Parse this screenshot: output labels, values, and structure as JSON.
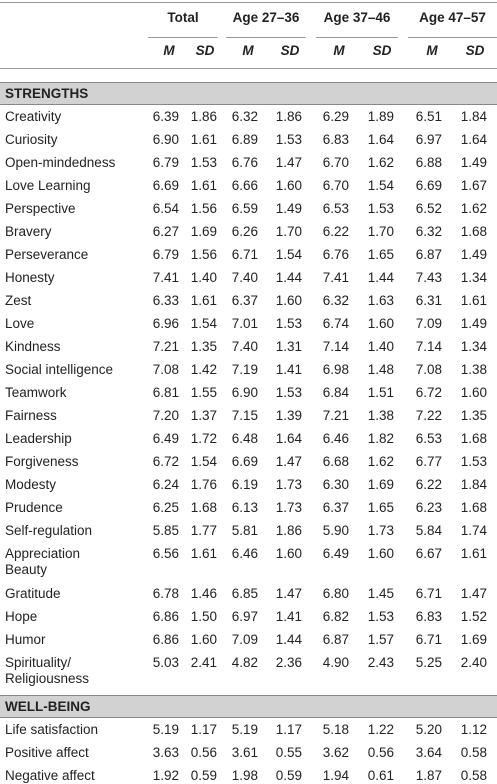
{
  "table": {
    "groups": [
      "Total",
      "Age 27–36",
      "Age 37–46",
      "Age 47–57"
    ],
    "subheaders": [
      "M",
      "SD"
    ],
    "sections": [
      {
        "title": "STRENGTHS",
        "rows": [
          [
            "Creativity",
            "6.39",
            "1.86",
            "6.32",
            "1.86",
            "6.29",
            "1.89",
            "6.51",
            "1.84"
          ],
          [
            "Curiosity",
            "6.90",
            "1.61",
            "6.89",
            "1.53",
            "6.83",
            "1.64",
            "6.97",
            "1.64"
          ],
          [
            "Open-mindedness",
            "6.79",
            "1.53",
            "6.76",
            "1.47",
            "6.70",
            "1.62",
            "6.88",
            "1.49"
          ],
          [
            "Love Learning",
            "6.69",
            "1.61",
            "6.66",
            "1.60",
            "6.70",
            "1.54",
            "6.69",
            "1.67"
          ],
          [
            "Perspective",
            "6.54",
            "1.56",
            "6.59",
            "1.49",
            "6.53",
            "1.53",
            "6.52",
            "1.62"
          ],
          [
            "Bravery",
            "6.27",
            "1.69",
            "6.26",
            "1.70",
            "6.22",
            "1.70",
            "6.32",
            "1.68"
          ],
          [
            "Perseverance",
            "6.79",
            "1.56",
            "6.71",
            "1.54",
            "6.76",
            "1.65",
            "6.87",
            "1.49"
          ],
          [
            "Honesty",
            "7.41",
            "1.40",
            "7.40",
            "1.44",
            "7.41",
            "1.44",
            "7.43",
            "1.34"
          ],
          [
            "Zest",
            "6.33",
            "1.61",
            "6.37",
            "1.60",
            "6.32",
            "1.63",
            "6.31",
            "1.61"
          ],
          [
            "Love",
            "6.96",
            "1.54",
            "7.01",
            "1.53",
            "6.74",
            "1.60",
            "7.09",
            "1.49"
          ],
          [
            "Kindness",
            "7.21",
            "1.35",
            "7.40",
            "1.31",
            "7.14",
            "1.40",
            "7.14",
            "1.34"
          ],
          [
            "Social intelligence",
            "7.08",
            "1.42",
            "7.19",
            "1.41",
            "6.98",
            "1.48",
            "7.08",
            "1.38"
          ],
          [
            "Teamwork",
            "6.81",
            "1.55",
            "6.90",
            "1.53",
            "6.84",
            "1.51",
            "6.72",
            "1.60"
          ],
          [
            "Fairness",
            "7.20",
            "1.37",
            "7.15",
            "1.39",
            "7.21",
            "1.38",
            "7.22",
            "1.35"
          ],
          [
            "Leadership",
            "6.49",
            "1.72",
            "6.48",
            "1.64",
            "6.46",
            "1.82",
            "6.53",
            "1.68"
          ],
          [
            "Forgiveness",
            "6.72",
            "1.54",
            "6.69",
            "1.47",
            "6.68",
            "1.62",
            "6.77",
            "1.53"
          ],
          [
            "Modesty",
            "6.24",
            "1.76",
            "6.19",
            "1.73",
            "6.30",
            "1.69",
            "6.22",
            "1.84"
          ],
          [
            "Prudence",
            "6.25",
            "1.68",
            "6.13",
            "1.73",
            "6.37",
            "1.65",
            "6.23",
            "1.68"
          ],
          [
            "Self-regulation",
            "5.85",
            "1.77",
            "5.81",
            "1.86",
            "5.90",
            "1.73",
            "5.84",
            "1.74"
          ],
          [
            "Appreciation Beauty",
            "6.56",
            "1.61",
            "6.46",
            "1.60",
            "6.49",
            "1.60",
            "6.67",
            "1.61"
          ],
          [
            "Gratitude",
            "6.78",
            "1.46",
            "6.85",
            "1.47",
            "6.80",
            "1.45",
            "6.71",
            "1.47"
          ],
          [
            "Hope",
            "6.86",
            "1.50",
            "6.97",
            "1.41",
            "6.82",
            "1.53",
            "6.83",
            "1.52"
          ],
          [
            "Humor",
            "6.86",
            "1.60",
            "7.09",
            "1.44",
            "6.87",
            "1.57",
            "6.71",
            "1.69"
          ],
          [
            "Spirituality/ Religiousness",
            "5.03",
            "2.41",
            "4.82",
            "2.36",
            "4.90",
            "2.43",
            "5.25",
            "2.40"
          ]
        ]
      },
      {
        "title": "WELL-BEING",
        "rows": [
          [
            "Life satisfaction",
            "5.19",
            "1.17",
            "5.19",
            "1.17",
            "5.18",
            "1.22",
            "5.20",
            "1.12"
          ],
          [
            "Positive affect",
            "3.63",
            "0.56",
            "3.61",
            "0.55",
            "3.62",
            "0.56",
            "3.64",
            "0.58"
          ],
          [
            "Negative affect",
            "1.92",
            "0.59",
            "1.98",
            "0.59",
            "1.94",
            "0.61",
            "1.87",
            "0.58"
          ]
        ]
      }
    ]
  }
}
